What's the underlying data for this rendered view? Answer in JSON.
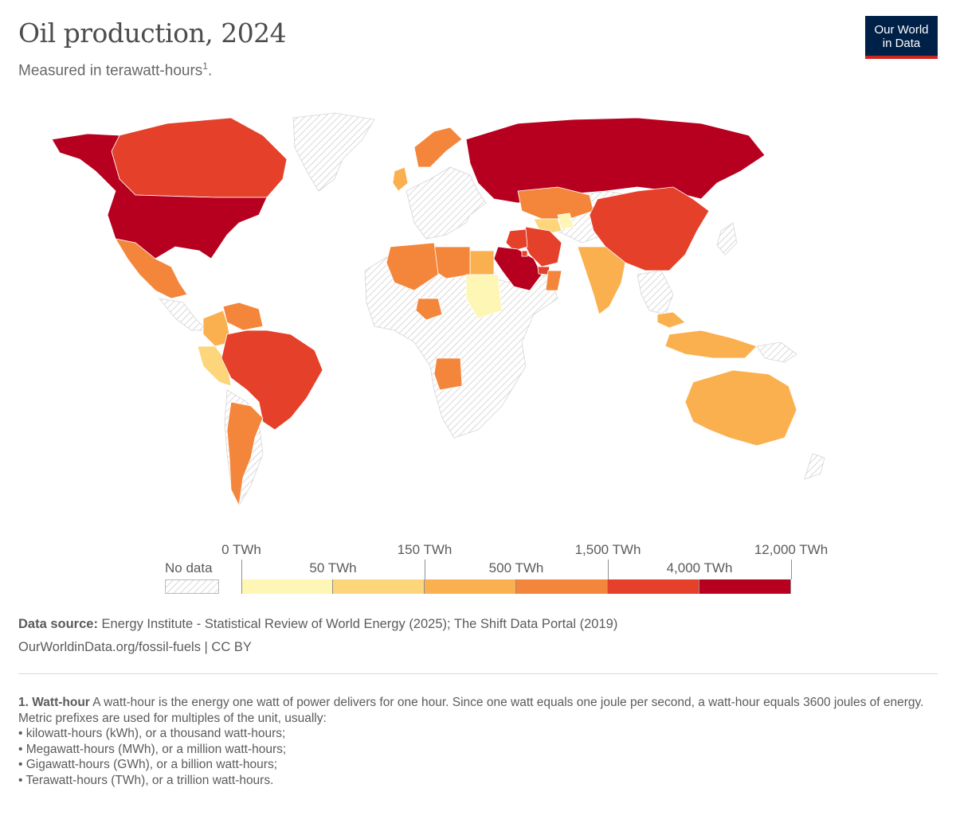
{
  "header": {
    "title": "Oil production, 2024",
    "subtitle": "Measured in terawatt-hours",
    "subtitle_footnote_mark": "1",
    "subtitle_end": "."
  },
  "logo": {
    "line1": "Our World",
    "line2": "in Data"
  },
  "colors": {
    "bin0": "#fef6b5",
    "bin1": "#fdd57a",
    "bin2": "#fbb04f",
    "bin3": "#f4863b",
    "bin4": "#e4402a",
    "bin5": "#b7001f",
    "nodata_hatch": "#cfcfcf",
    "border": "#ffffff"
  },
  "chart_data": {
    "type": "choropleth",
    "title": "Oil production, 2024",
    "unit": "TWh",
    "legend": {
      "no_data_label": "No data",
      "ticks_top": [
        "0 TWh",
        "150 TWh",
        "1,500 TWh",
        "12,000 TWh"
      ],
      "ticks_bottom": [
        "50 TWh",
        "500 TWh",
        "4,000 TWh"
      ],
      "bins": [
        {
          "min": 0,
          "max": 50,
          "color": "#fef6b5"
        },
        {
          "min": 50,
          "max": 150,
          "color": "#fdd57a"
        },
        {
          "min": 150,
          "max": 500,
          "color": "#fbb04f"
        },
        {
          "min": 500,
          "max": 1500,
          "color": "#f4863b"
        },
        {
          "min": 1500,
          "max": 4000,
          "color": "#e4402a"
        },
        {
          "min": 4000,
          "max": 12000,
          "color": "#b7001f"
        }
      ]
    },
    "regions": [
      {
        "name": "United States",
        "bin": 5
      },
      {
        "name": "Canada",
        "bin": 4
      },
      {
        "name": "Mexico",
        "bin": 3
      },
      {
        "name": "Brazil",
        "bin": 4
      },
      {
        "name": "Venezuela",
        "bin": 3
      },
      {
        "name": "Colombia",
        "bin": 2
      },
      {
        "name": "Argentina",
        "bin": 3
      },
      {
        "name": "Peru",
        "bin": 1
      },
      {
        "name": "Russia",
        "bin": 5
      },
      {
        "name": "Saudi Arabia",
        "bin": 5
      },
      {
        "name": "Iraq",
        "bin": 4
      },
      {
        "name": "Iran",
        "bin": 4
      },
      {
        "name": "United Arab Emirates",
        "bin": 4
      },
      {
        "name": "Kuwait",
        "bin": 4
      },
      {
        "name": "Kazakhstan",
        "bin": 3
      },
      {
        "name": "China",
        "bin": 4
      },
      {
        "name": "India",
        "bin": 2
      },
      {
        "name": "Norway",
        "bin": 3
      },
      {
        "name": "United Kingdom",
        "bin": 2
      },
      {
        "name": "Algeria",
        "bin": 3
      },
      {
        "name": "Libya",
        "bin": 3
      },
      {
        "name": "Egypt",
        "bin": 2
      },
      {
        "name": "Nigeria",
        "bin": 3
      },
      {
        "name": "Angola",
        "bin": 3
      },
      {
        "name": "Sudan",
        "bin": 0
      },
      {
        "name": "Oman",
        "bin": 3
      },
      {
        "name": "Indonesia",
        "bin": 2
      },
      {
        "name": "Malaysia",
        "bin": 2
      },
      {
        "name": "Australia",
        "bin": 2
      },
      {
        "name": "Turkmenistan",
        "bin": 1
      },
      {
        "name": "Uzbekistan",
        "bin": 0
      }
    ]
  },
  "source": {
    "label": "Data source:",
    "text": "Energy Institute - Statistical Review of World Energy (2025); The Shift Data Portal (2019)",
    "url_line": "OurWorldinData.org/fossil-fuels | CC BY"
  },
  "notes": {
    "term": "1. Watt-hour",
    "definition": "A watt-hour is the energy one watt of power delivers for one hour. Since one watt equals one joule per second, a watt-hour equals 3600 joules of energy.",
    "prefix_intro": "Metric prefixes are used for multiples of the unit, usually:",
    "prefixes": [
      "• kilowatt-hours (kWh), or a thousand watt-hours;",
      "• Megawatt-hours (MWh), or a million watt-hours;",
      "• Gigawatt-hours (GWh), or a billion watt-hours;",
      "• Terawatt-hours (TWh), or a trillion watt-hours."
    ]
  }
}
